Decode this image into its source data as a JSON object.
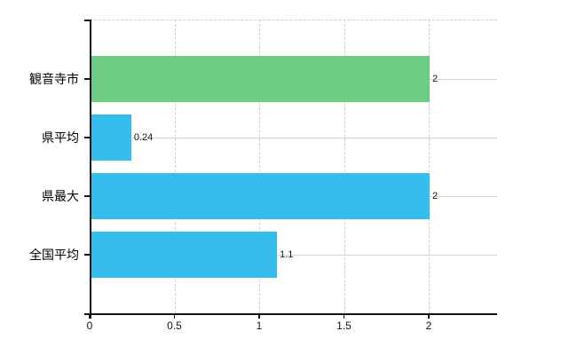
{
  "chart_data": {
    "type": "bar",
    "orientation": "horizontal",
    "title": "",
    "xlabel": "",
    "ylabel": "",
    "categories": [
      "観音寺市",
      "県平均",
      "県最大",
      "全国平均"
    ],
    "values": [
      2,
      0.24,
      2,
      1.1
    ],
    "value_labels": [
      "2",
      "0.24",
      "2",
      "1.1"
    ],
    "bar_colors": [
      "#6ECD82",
      "#35BDEE",
      "#35BDEE",
      "#35BDEE"
    ],
    "x_ticks": [
      0,
      0.5,
      1,
      1.5,
      2
    ],
    "x_tick_labels": [
      "0",
      "0.5",
      "1",
      "1.5",
      "2"
    ],
    "xlim": [
      0,
      2.4
    ],
    "legend": false,
    "grid": {
      "vertical_gridlines": "dashed",
      "horizontal_gridlines_at_category_centers": "solid",
      "top_border": "dashed"
    },
    "colors": {
      "bar_green": "#6ECD82",
      "bar_blue": "#35BDEE",
      "axis": "#141414",
      "dashed_gridline": "#cfcfcf",
      "solid_gridline": "#d3d9d1",
      "text": "#000000",
      "background": "#ffffff"
    }
  }
}
